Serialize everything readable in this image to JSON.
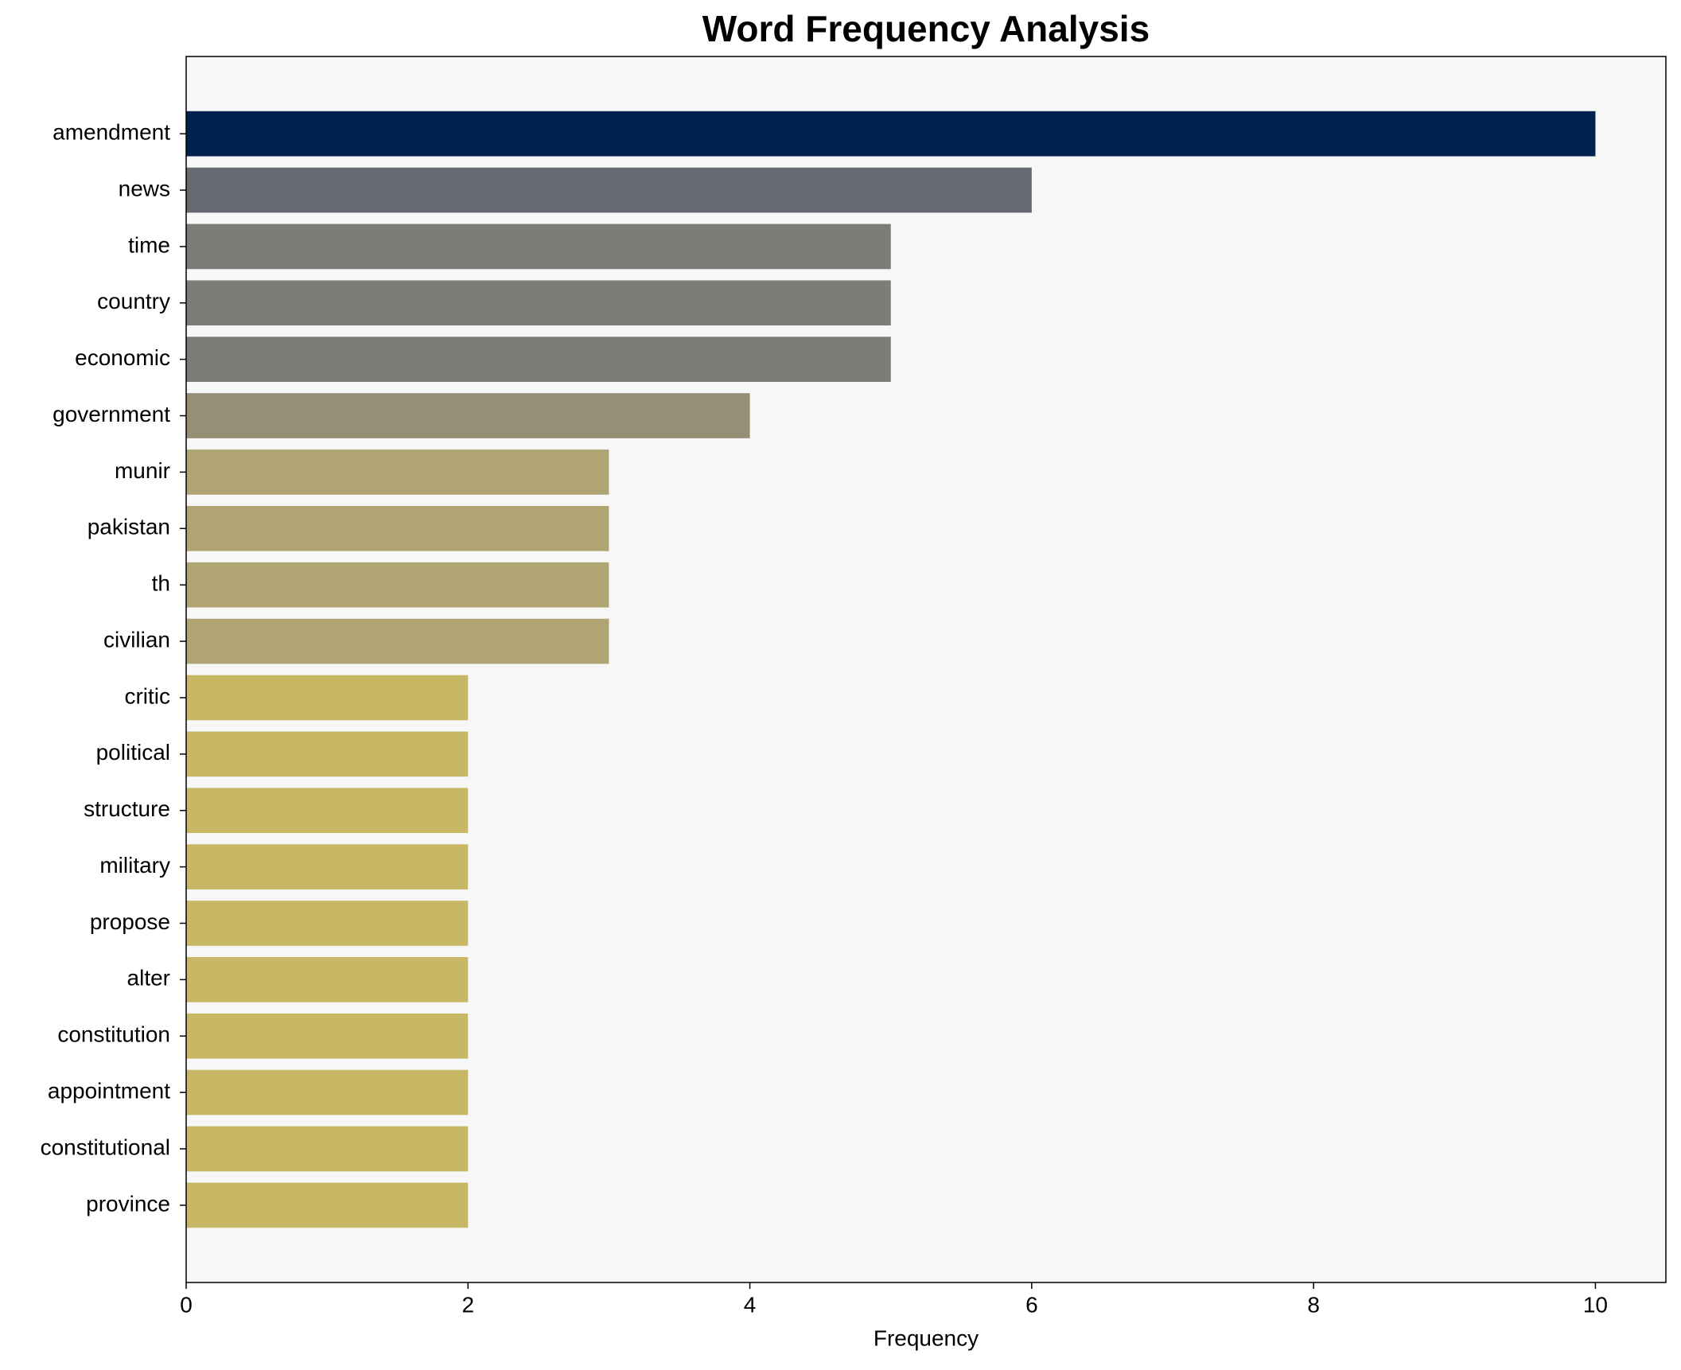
{
  "chart_data": {
    "type": "barh",
    "title": "Word Frequency Analysis",
    "xlabel": "Frequency",
    "categories": [
      "amendment",
      "news",
      "time",
      "country",
      "economic",
      "government",
      "munir",
      "pakistan",
      "th",
      "civilian",
      "critic",
      "political",
      "structure",
      "military",
      "propose",
      "alter",
      "constitution",
      "appointment",
      "constitutional",
      "province"
    ],
    "values": [
      10,
      6,
      5,
      5,
      5,
      4,
      3,
      3,
      3,
      3,
      2,
      2,
      2,
      2,
      2,
      2,
      2,
      2,
      2,
      2
    ],
    "colors": [
      "#00224e",
      "#666970",
      "#7d7c78",
      "#7d7c78",
      "#7d7c78",
      "#958f75",
      "#b0a572",
      "#b0a572",
      "#b0a572",
      "#b0a572",
      "#c8b866",
      "#c8b866",
      "#c8b866",
      "#c8b866",
      "#c8b866",
      "#c8b866",
      "#c8b866",
      "#c8b866",
      "#c8b866",
      "#c8b866"
    ],
    "xlim": [
      0,
      10.5
    ],
    "xticks": [
      0,
      2,
      4,
      6,
      8,
      10
    ]
  }
}
